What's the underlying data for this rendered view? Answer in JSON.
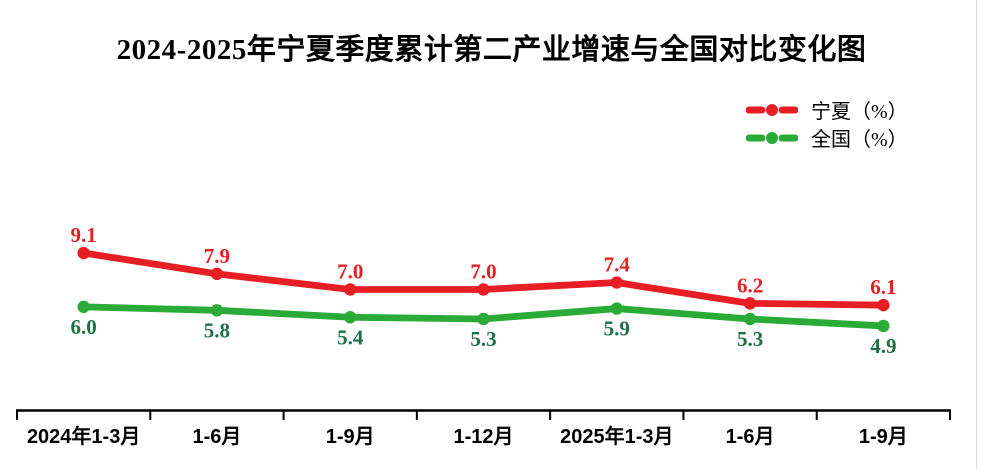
{
  "title": "2024-2025年宁夏季度累计第二产业增速与全国对比变化图",
  "legend": {
    "items": [
      {
        "label": "宁夏（%）"
      },
      {
        "label": "全国（%）"
      }
    ]
  },
  "colors": {
    "ningxia": "#e81e25",
    "national": "#2aab37",
    "national_label": "#1d7044",
    "axis": "#000000"
  },
  "chart_data": {
    "type": "line",
    "title": "2024-2025年宁夏季度累计第二产业增速与全国对比变化图",
    "categories": [
      "2024年1-3月",
      "1-6月",
      "1-9月",
      "1-12月",
      "2025年1-3月",
      "1-6月",
      "1-9月"
    ],
    "series": [
      {
        "name": "宁夏（%）",
        "color": "#e81e25",
        "label_color": "#e81e25",
        "values": [
          9.1,
          7.9,
          7.0,
          7.0,
          7.4,
          6.2,
          6.1
        ]
      },
      {
        "name": "全国（%）",
        "color": "#2aab37",
        "label_color": "#1d7044",
        "values": [
          6.0,
          5.8,
          5.4,
          5.3,
          5.9,
          5.3,
          4.9
        ]
      }
    ],
    "xlabel": "",
    "ylabel": "",
    "ylim": [
      0,
      10
    ],
    "grid": false,
    "y_axis_visible": false,
    "data_labels": true,
    "legend_position": "top-right"
  }
}
